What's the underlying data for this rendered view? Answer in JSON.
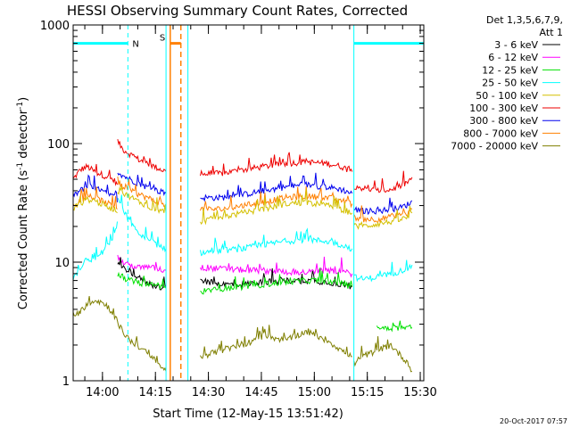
{
  "chart_data": {
    "type": "line",
    "title": "HESSI Observing Summary Count Rates, Corrected",
    "xlabel": "Start Time (12-May-15 13:51:42)",
    "ylabel": "Corrected Count Rate (s⁻¹ detector⁻¹)",
    "ylabel_main": "Corrected Count Rate (s",
    "ylabel_sup1": "-1",
    "ylabel_mid": " detector",
    "ylabel_sup2": "-1",
    "ylabel_end": ")",
    "x_axis": {
      "start": "13:51:42",
      "range_minutes": [
        0,
        99.3
      ],
      "tick_minutes": [
        8.3,
        23.3,
        38.3,
        53.3,
        68.3,
        83.3,
        98.3
      ],
      "tick_labels": [
        "14:00",
        "14:15",
        "14:30",
        "14:45",
        "15:00",
        "15:15",
        "15:30"
      ]
    },
    "y_axis": {
      "scale": "log",
      "range": [
        1,
        1000
      ],
      "tick_values": [
        1,
        10,
        100,
        1000
      ],
      "tick_labels": [
        "1",
        "10",
        "100",
        "1000"
      ]
    },
    "legend": {
      "placement": "top-right",
      "header1": "Det 1,3,5,6,7,9,",
      "header2": "Att 1",
      "entries": [
        {
          "label": "3 - 6 keV",
          "color": "#000000"
        },
        {
          "label": "6 - 12 keV",
          "color": "#ff00ff"
        },
        {
          "label": "12 - 25 keV",
          "color": "#00e000"
        },
        {
          "label": "25 - 50 keV",
          "color": "#00ffff"
        },
        {
          "label": "50 - 100 keV",
          "color": "#d4c000"
        },
        {
          "label": "100 - 300 keV",
          "color": "#ee0000"
        },
        {
          "label": "300 - 800 keV",
          "color": "#0000ee"
        },
        {
          "label": "800 - 7000 keV",
          "color": "#ff8000"
        },
        {
          "label": "7000 - 20000 keV",
          "color": "#7f7f00"
        }
      ]
    },
    "annotations": {
      "night_label": "N",
      "saa_label": "S",
      "night_intervals_minutes": [
        [
          0,
          15.5
        ],
        [
          79.5,
          99.3
        ]
      ],
      "night_bar_value": 700,
      "saa_interval_minutes": [
        [
          27.5,
          30.5
        ]
      ],
      "saa_bar_value": 700
    },
    "series": [
      {
        "name": "100 - 300 keV",
        "color": "#ee0000",
        "segments": [
          {
            "x": [
              0,
              2,
              4,
              6,
              8,
              10,
              12,
              12.5
            ],
            "y": [
              50,
              60,
              64,
              58,
              55,
              52,
              48,
              45
            ]
          },
          {
            "x": [
              12.6,
              14,
              16,
              18,
              20,
              22,
              24,
              26.3
            ],
            "y": [
              105,
              90,
              82,
              75,
              70,
              66,
              62,
              58
            ]
          },
          {
            "x": [
              36,
              42,
              48,
              54,
              60,
              66,
              72,
              76,
              79
            ],
            "y": [
              55,
              56,
              60,
              64,
              68,
              70,
              68,
              64,
              58
            ]
          },
          {
            "x": [
              79.5,
              82,
              86,
              90,
              93,
              95,
              96
            ],
            "y": [
              44,
              42,
              40,
              41,
              44,
              48,
              52
            ]
          }
        ]
      },
      {
        "name": "300 - 800 keV",
        "color": "#0000ee",
        "segments": [
          {
            "x": [
              0,
              2,
              4,
              6,
              8,
              10,
              12,
              12.5
            ],
            "y": [
              36,
              40,
              44,
              42,
              40,
              37,
              35,
              32
            ]
          },
          {
            "x": [
              12.6,
              14,
              16,
              18,
              20,
              22,
              24,
              26.3
            ],
            "y": [
              58,
              54,
              50,
              47,
              44,
              42,
              40,
              38
            ]
          },
          {
            "x": [
              36,
              42,
              48,
              54,
              60,
              66,
              72,
              76,
              79
            ],
            "y": [
              35,
              35,
              37,
              40,
              43,
              45,
              43,
              41,
              38
            ]
          },
          {
            "x": [
              79.5,
              82,
              86,
              90,
              93,
              95,
              96
            ],
            "y": [
              28,
              27,
              27,
              28,
              29,
              31,
              33
            ]
          }
        ]
      },
      {
        "name": "800 - 7000 keV",
        "color": "#ff8000",
        "segments": [
          {
            "x": [
              0,
              2,
              4,
              6,
              8,
              10,
              12,
              12.5
            ],
            "y": [
              30,
              33,
              36,
              35,
              33,
              31,
              30,
              28
            ]
          },
          {
            "x": [
              12.6,
              14,
              16,
              18,
              20,
              22,
              24,
              26.3
            ],
            "y": [
              46,
              43,
              40,
              38,
              36,
              34,
              32,
              31
            ]
          },
          {
            "x": [
              36,
              42,
              48,
              54,
              60,
              66,
              72,
              76,
              79
            ],
            "y": [
              28,
              28,
              30,
              32,
              35,
              36,
              35,
              33,
              31
            ]
          },
          {
            "x": [
              79.5,
              82,
              86,
              90,
              93,
              95,
              96
            ],
            "y": [
              24,
              23,
              23,
              24,
              25,
              26,
              28
            ]
          }
        ]
      },
      {
        "name": "50 - 100 keV",
        "color": "#d4c000",
        "segments": [
          {
            "x": [
              0,
              2,
              4,
              6,
              8,
              10,
              12,
              12.5
            ],
            "y": [
              28,
              31,
              34,
              33,
              31,
              29,
              28,
              26
            ]
          },
          {
            "x": [
              12.6,
              14,
              16,
              18,
              20,
              22,
              24,
              26.3
            ],
            "y": [
              40,
              38,
              36,
              33,
              31,
              29,
              28,
              26
            ]
          },
          {
            "x": [
              36,
              42,
              48,
              54,
              60,
              66,
              72,
              76,
              79
            ],
            "y": [
              22,
              24,
              26,
              28,
              31,
              32,
              30,
              28,
              26
            ]
          },
          {
            "x": [
              79.5,
              82,
              86,
              90,
              93,
              95,
              96
            ],
            "y": [
              20,
              20,
              21,
              22,
              23,
              24,
              26
            ]
          }
        ]
      },
      {
        "name": "25 - 50 keV",
        "color": "#00ffff",
        "segments": [
          {
            "x": [
              0,
              2,
              4,
              6,
              8,
              10,
              12,
              12.5
            ],
            "y": [
              7,
              9,
              11,
              10,
              12,
              14,
              18,
              22
            ]
          },
          {
            "x": [
              12.6,
              14,
              16,
              18,
              20,
              22,
              24,
              26.3
            ],
            "y": [
              35,
              28,
              22,
              18,
              16,
              15,
              14,
              13
            ]
          },
          {
            "x": [
              36,
              42,
              48,
              54,
              60,
              66,
              72,
              76,
              79
            ],
            "y": [
              12,
              12.5,
              13,
              14,
              15,
              15.5,
              15,
              14,
              13
            ]
          },
          {
            "x": [
              79.5,
              82,
              86,
              90,
              93,
              95,
              96
            ],
            "y": [
              7.5,
              7.2,
              7.5,
              8,
              8.5,
              9,
              9.5
            ]
          }
        ]
      },
      {
        "name": "6 - 12 keV",
        "color": "#ff00ff",
        "segments": [
          {
            "x": [
              12.6,
              14,
              16,
              18,
              20,
              22,
              24,
              26.3
            ],
            "y": [
              11,
              10,
              9.5,
              9,
              9,
              9,
              8.8,
              8.5
            ]
          },
          {
            "x": [
              36,
              42,
              48,
              54,
              60,
              66,
              72,
              76,
              79
            ],
            "y": [
              9,
              8.8,
              8.6,
              8.5,
              8.3,
              8.2,
              8.5,
              8.3,
              8
            ]
          }
        ]
      },
      {
        "name": "3 - 6 keV",
        "color": "#000000",
        "segments": [
          {
            "x": [
              12.6,
              14,
              16,
              18,
              20,
              22,
              24,
              26.3
            ],
            "y": [
              10,
              9,
              8.5,
              7.5,
              7,
              6.5,
              6.2,
              6
            ]
          },
          {
            "x": [
              36,
              42,
              48,
              54,
              60,
              66,
              72,
              76,
              79
            ],
            "y": [
              7,
              6.5,
              6.5,
              6.8,
              7,
              7,
              6.8,
              6.5,
              6.2
            ]
          }
        ]
      },
      {
        "name": "12 - 25 keV",
        "color": "#00e000",
        "segments": [
          {
            "x": [
              12.6,
              14,
              16,
              18,
              20,
              22,
              24,
              26.3
            ],
            "y": [
              8,
              7.5,
              7,
              6.8,
              6.6,
              6.5,
              6.4,
              6
            ]
          },
          {
            "x": [
              36,
              42,
              48,
              54,
              60,
              66,
              72,
              76,
              79
            ],
            "y": [
              5.5,
              6,
              6.2,
              6.5,
              6.8,
              7,
              7,
              6.6,
              6.2
            ]
          },
          {
            "x": [
              86,
              88,
              90,
              92,
              94,
              96
            ],
            "y": [
              2.8,
              2.8,
              2.8,
              2.8,
              2.8,
              2.8
            ]
          }
        ]
      },
      {
        "name": "7000 - 20000 keV",
        "color": "#7f7f00",
        "segments": [
          {
            "x": [
              0,
              2,
              4,
              6,
              8,
              10,
              12,
              14,
              16,
              18,
              20,
              22,
              24,
              26.3
            ],
            "y": [
              3.6,
              3.8,
              4.5,
              4.8,
              4.6,
              4.2,
              3.4,
              2.6,
              2.2,
              2.0,
              1.8,
              1.6,
              1.4,
              1.2
            ]
          },
          {
            "x": [
              36,
              42,
              48,
              54,
              60,
              66,
              72,
              76,
              79
            ],
            "y": [
              1.6,
              1.8,
              2.0,
              2.4,
              2.2,
              2.6,
              2.2,
              1.8,
              1.6
            ]
          },
          {
            "x": [
              79.5,
              82,
              86,
              90,
              93,
              95,
              96
            ],
            "y": [
              1.4,
              1.6,
              1.8,
              2.0,
              1.6,
              1.4,
              1.2
            ]
          }
        ]
      }
    ]
  },
  "footer": {
    "timestamp": "20-Oct-2017 07:57"
  }
}
